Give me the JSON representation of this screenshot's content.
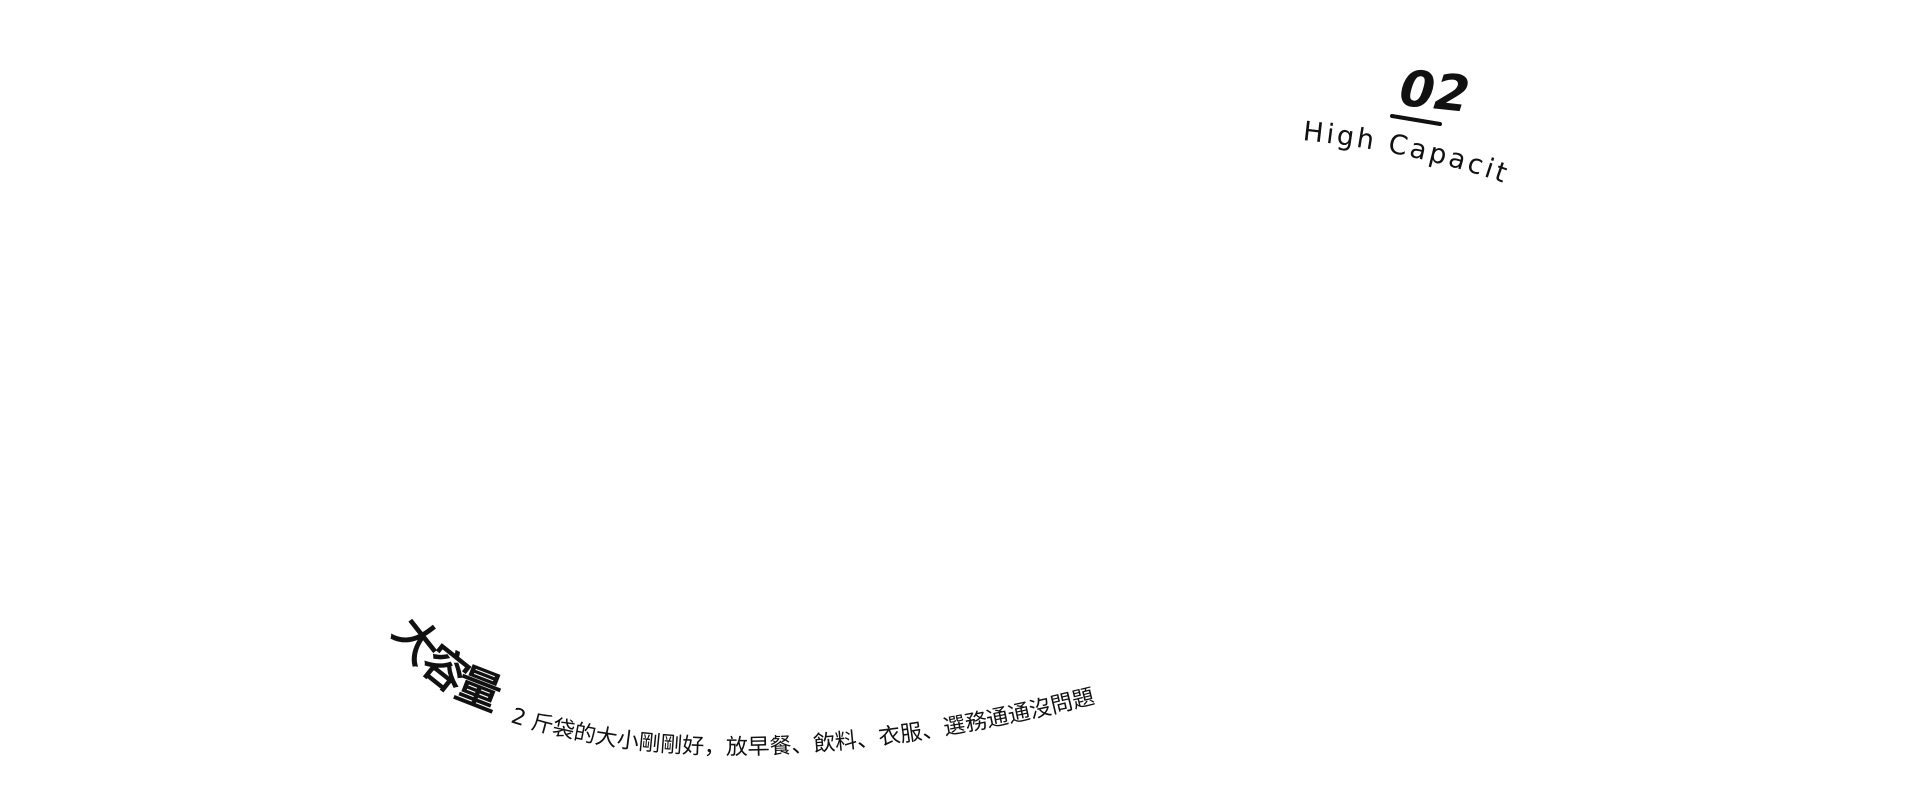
{
  "feature": {
    "number": "02",
    "subtitle": "High Capacity",
    "title": "大容量",
    "description": "2 斤袋的大小剛剛好，放早餐、飲料、衣服、選務通通沒問題"
  }
}
